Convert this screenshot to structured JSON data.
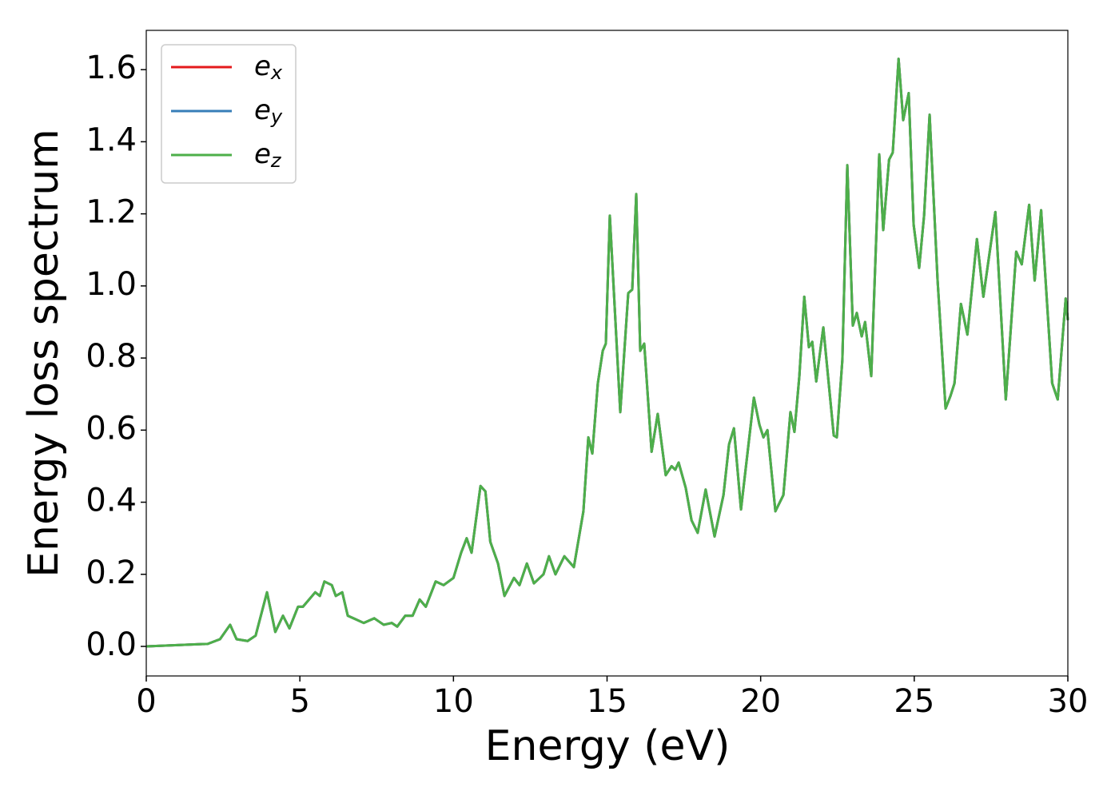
{
  "chart_data": {
    "type": "line",
    "xlabel": "Energy (eV)",
    "ylabel": "Energy loss spectrum",
    "xlim": [
      0,
      30
    ],
    "ylim": [
      -0.082,
      1.709
    ],
    "xticks": [
      0,
      5,
      10,
      15,
      20,
      25,
      30
    ],
    "yticks": [
      {
        "value": 0,
        "label": "0.0"
      },
      0.2,
      0.4,
      0.6,
      0.8,
      {
        "value": 1,
        "label": "1.0"
      },
      1.2,
      1.4,
      1.6
    ],
    "legend": "upper left",
    "grid": false,
    "x": [
      0,
      2.0,
      2.4,
      2.73,
      2.94,
      3.3,
      3.56,
      3.93,
      4.2,
      4.45,
      4.66,
      4.94,
      5.1,
      5.5,
      5.65,
      5.8,
      6.04,
      6.17,
      6.38,
      6.56,
      6.82,
      7.08,
      7.42,
      7.73,
      7.99,
      8.17,
      8.43,
      8.67,
      8.9,
      9.1,
      9.42,
      9.68,
      10.0,
      10.25,
      10.43,
      10.59,
      10.88,
      11.04,
      11.2,
      11.45,
      11.66,
      11.97,
      12.15,
      12.39,
      12.62,
      12.93,
      13.11,
      13.32,
      13.61,
      13.92,
      14.23,
      14.39,
      14.52,
      14.7,
      14.86,
      14.96,
      15.09,
      15.43,
      15.69,
      15.82,
      15.95,
      16.08,
      16.21,
      16.45,
      16.65,
      16.91,
      17.1,
      17.22,
      17.33,
      17.56,
      17.75,
      17.95,
      18.21,
      18.5,
      18.79,
      18.97,
      19.13,
      19.36,
      19.78,
      19.96,
      20.09,
      20.22,
      20.48,
      20.74,
      20.97,
      21.1,
      21.26,
      21.42,
      21.57,
      21.68,
      21.81,
      22.04,
      22.38,
      22.48,
      22.66,
      22.82,
      23.0,
      23.13,
      23.29,
      23.4,
      23.6,
      23.86,
      23.99,
      24.18,
      24.3,
      24.49,
      24.64,
      24.82,
      24.98,
      25.16,
      25.32,
      25.5,
      25.76,
      26.02,
      26.18,
      26.31,
      26.52,
      26.73,
      27.04,
      27.25,
      27.64,
      27.98,
      28.32,
      28.5,
      28.74,
      28.92,
      29.13,
      29.49,
      29.67,
      29.93,
      30.0
    ],
    "series": [
      {
        "name": "e_x",
        "color": "#e41a1c",
        "values": [
          0,
          0.007,
          0.02,
          0.06,
          0.02,
          0.015,
          0.03,
          0.15,
          0.04,
          0.085,
          0.05,
          0.11,
          0.11,
          0.15,
          0.14,
          0.18,
          0.17,
          0.14,
          0.15,
          0.085,
          0.075,
          0.065,
          0.078,
          0.06,
          0.065,
          0.055,
          0.085,
          0.085,
          0.13,
          0.11,
          0.18,
          0.17,
          0.19,
          0.26,
          0.3,
          0.26,
          0.445,
          0.43,
          0.29,
          0.23,
          0.14,
          0.19,
          0.17,
          0.23,
          0.175,
          0.2,
          0.25,
          0.2,
          0.25,
          0.22,
          0.375,
          0.58,
          0.535,
          0.73,
          0.82,
          0.84,
          1.195,
          0.65,
          0.98,
          0.99,
          1.255,
          0.82,
          0.84,
          0.54,
          0.645,
          0.475,
          0.5,
          0.49,
          0.51,
          0.44,
          0.35,
          0.315,
          0.435,
          0.305,
          0.42,
          0.56,
          0.605,
          0.38,
          0.69,
          0.615,
          0.58,
          0.6,
          0.375,
          0.42,
          0.65,
          0.595,
          0.75,
          0.97,
          0.83,
          0.845,
          0.735,
          0.885,
          0.585,
          0.58,
          0.795,
          1.335,
          0.89,
          0.925,
          0.86,
          0.9,
          0.75,
          1.365,
          1.155,
          1.35,
          1.37,
          1.63,
          1.46,
          1.535,
          1.17,
          1.05,
          1.195,
          1.475,
          1.015,
          0.66,
          0.695,
          0.73,
          0.95,
          0.865,
          1.13,
          0.97,
          1.205,
          0.685,
          1.095,
          1.06,
          1.225,
          1.015,
          1.21,
          0.73,
          0.685,
          0.965,
          0.905
        ]
      },
      {
        "name": "e_y",
        "color": "#377eb8",
        "values": [
          0,
          0.007,
          0.02,
          0.06,
          0.02,
          0.015,
          0.03,
          0.15,
          0.04,
          0.085,
          0.05,
          0.11,
          0.11,
          0.15,
          0.14,
          0.18,
          0.17,
          0.14,
          0.15,
          0.085,
          0.075,
          0.065,
          0.078,
          0.06,
          0.065,
          0.055,
          0.085,
          0.085,
          0.13,
          0.11,
          0.18,
          0.17,
          0.19,
          0.26,
          0.3,
          0.26,
          0.445,
          0.43,
          0.29,
          0.23,
          0.14,
          0.19,
          0.17,
          0.23,
          0.175,
          0.2,
          0.25,
          0.2,
          0.25,
          0.22,
          0.375,
          0.58,
          0.535,
          0.73,
          0.82,
          0.84,
          1.195,
          0.65,
          0.98,
          0.99,
          1.255,
          0.82,
          0.84,
          0.54,
          0.645,
          0.475,
          0.5,
          0.49,
          0.51,
          0.44,
          0.35,
          0.315,
          0.435,
          0.305,
          0.42,
          0.56,
          0.605,
          0.38,
          0.69,
          0.615,
          0.58,
          0.6,
          0.375,
          0.42,
          0.65,
          0.595,
          0.75,
          0.97,
          0.83,
          0.845,
          0.735,
          0.885,
          0.585,
          0.58,
          0.795,
          1.335,
          0.89,
          0.925,
          0.86,
          0.9,
          0.75,
          1.365,
          1.155,
          1.35,
          1.37,
          1.63,
          1.46,
          1.535,
          1.17,
          1.05,
          1.195,
          1.475,
          1.015,
          0.66,
          0.695,
          0.73,
          0.95,
          0.865,
          1.13,
          0.97,
          1.205,
          0.685,
          1.095,
          1.06,
          1.225,
          1.015,
          1.21,
          0.73,
          0.685,
          0.965,
          0.905
        ]
      },
      {
        "name": "e_z",
        "color": "#4daf4a",
        "values": [
          0,
          0.007,
          0.02,
          0.06,
          0.02,
          0.015,
          0.03,
          0.15,
          0.04,
          0.085,
          0.05,
          0.11,
          0.11,
          0.15,
          0.14,
          0.18,
          0.17,
          0.14,
          0.15,
          0.085,
          0.075,
          0.065,
          0.078,
          0.06,
          0.065,
          0.055,
          0.085,
          0.085,
          0.13,
          0.11,
          0.18,
          0.17,
          0.19,
          0.26,
          0.3,
          0.26,
          0.445,
          0.43,
          0.29,
          0.23,
          0.14,
          0.19,
          0.17,
          0.23,
          0.175,
          0.2,
          0.25,
          0.2,
          0.25,
          0.22,
          0.375,
          0.58,
          0.535,
          0.73,
          0.82,
          0.84,
          1.195,
          0.65,
          0.98,
          0.99,
          1.255,
          0.82,
          0.84,
          0.54,
          0.645,
          0.475,
          0.5,
          0.49,
          0.51,
          0.44,
          0.35,
          0.315,
          0.435,
          0.305,
          0.42,
          0.56,
          0.605,
          0.38,
          0.69,
          0.615,
          0.58,
          0.6,
          0.375,
          0.42,
          0.65,
          0.595,
          0.75,
          0.97,
          0.83,
          0.845,
          0.735,
          0.885,
          0.585,
          0.58,
          0.795,
          1.335,
          0.89,
          0.925,
          0.86,
          0.9,
          0.75,
          1.365,
          1.155,
          1.35,
          1.37,
          1.63,
          1.46,
          1.535,
          1.17,
          1.05,
          1.195,
          1.475,
          1.015,
          0.66,
          0.695,
          0.73,
          0.95,
          0.865,
          1.13,
          0.97,
          1.205,
          0.685,
          1.095,
          1.06,
          1.225,
          1.015,
          1.21,
          0.73,
          0.685,
          0.965,
          0.905
        ]
      }
    ]
  }
}
